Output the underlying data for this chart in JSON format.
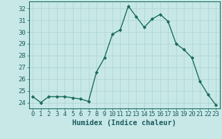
{
  "x": [
    0,
    1,
    2,
    3,
    4,
    5,
    6,
    7,
    8,
    9,
    10,
    11,
    12,
    13,
    14,
    15,
    16,
    17,
    18,
    19,
    20,
    21,
    22,
    23
  ],
  "y": [
    24.5,
    24.0,
    24.5,
    24.5,
    24.5,
    24.4,
    24.3,
    24.1,
    26.6,
    27.8,
    29.8,
    30.2,
    32.2,
    31.3,
    30.4,
    31.1,
    31.5,
    30.9,
    29.0,
    28.5,
    27.8,
    25.8,
    24.7,
    23.8
  ],
  "line_color": "#1a6b5a",
  "marker": "D",
  "marker_size": 2.2,
  "bg_color": "#c8e8e8",
  "grid_color": "#b0d4d4",
  "xlabel": "Humidex (Indice chaleur)",
  "xlabel_fontsize": 7.5,
  "ylabel_ticks": [
    24,
    25,
    26,
    27,
    28,
    29,
    30,
    31,
    32
  ],
  "ylim": [
    23.5,
    32.6
  ],
  "xlim": [
    -0.5,
    23.5
  ],
  "tick_fontsize": 6.5,
  "line_width": 1.0
}
